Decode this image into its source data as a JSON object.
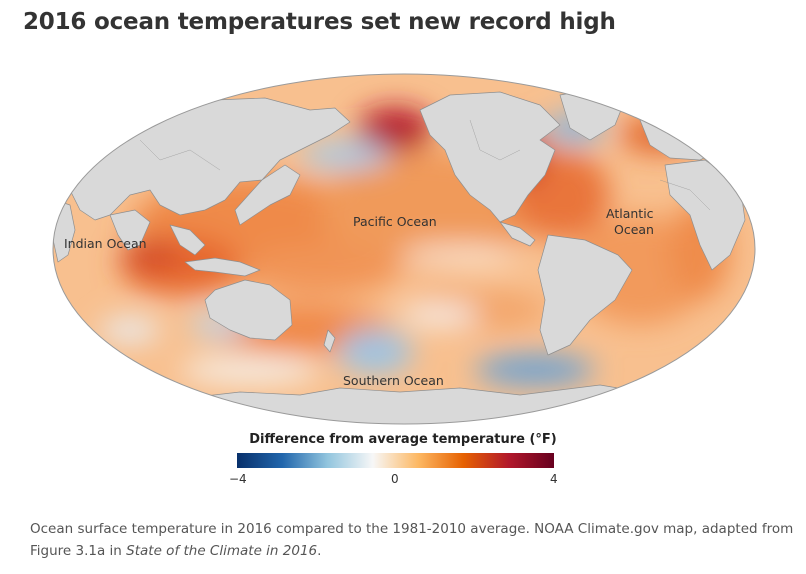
{
  "title": "2016 ocean temperatures set new record high",
  "map": {
    "labels": {
      "pacific": "Pacific Ocean",
      "atlantic_line1": "Atlantic",
      "atlantic_line2": "Ocean",
      "indian": "Indian Ocean",
      "southern": "Southern Ocean"
    }
  },
  "legend": {
    "title": "Difference from average temperature (°F)",
    "min_label": "−4",
    "mid_label": "0",
    "max_label": "4",
    "min": -4,
    "max": 4,
    "colors": [
      "#08306b",
      "#2166ac",
      "#92c5de",
      "#f7f7f7",
      "#fdb863",
      "#e66101",
      "#b2182b",
      "#67001f"
    ]
  },
  "caption": {
    "part1": "Ocean surface temperature in 2016 compared to the 1981-2010 average. NOAA Climate.gov map, adapted from Figure  3.1a in ",
    "italic": "State of the Climate in 2016",
    "part2": "."
  }
}
